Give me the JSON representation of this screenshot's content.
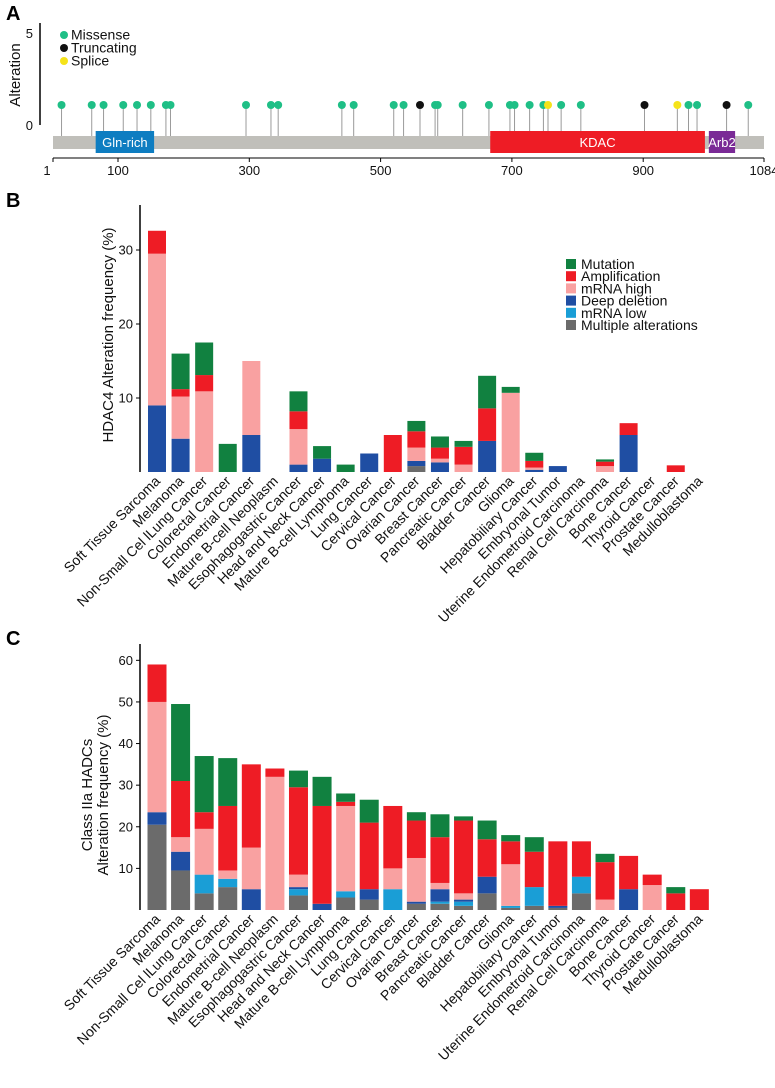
{
  "panel_a": {
    "letter": "A",
    "ylabel": "Alteration",
    "y_ticks": [
      "0",
      "5"
    ],
    "x_ticks": [
      1,
      100,
      300,
      500,
      700,
      900,
      1084
    ],
    "protein_length": 1084,
    "legend": [
      {
        "label": "Missense",
        "color": "#1fbf86"
      },
      {
        "label": "Truncating",
        "color": "#111111"
      },
      {
        "label": "Splice",
        "color": "#f5e31a"
      }
    ],
    "domains": [
      {
        "name": "Gln-rich",
        "start": 66,
        "end": 155,
        "color": "#0e7dc1"
      },
      {
        "name": "KDAC",
        "start": 667,
        "end": 994,
        "color": "#ee1c25"
      },
      {
        "name": "Arb2",
        "start": 1000,
        "end": 1040,
        "color": "#7a2a96"
      }
    ],
    "mutations": [
      {
        "pos": 14,
        "type": "Missense"
      },
      {
        "pos": 60,
        "type": "Missense"
      },
      {
        "pos": 78,
        "type": "Missense"
      },
      {
        "pos": 108,
        "type": "Missense"
      },
      {
        "pos": 129,
        "type": "Missense"
      },
      {
        "pos": 150,
        "type": "Missense"
      },
      {
        "pos": 173,
        "type": "Missense"
      },
      {
        "pos": 180,
        "type": "Missense"
      },
      {
        "pos": 295,
        "type": "Missense"
      },
      {
        "pos": 333,
        "type": "Missense"
      },
      {
        "pos": 344,
        "type": "Missense"
      },
      {
        "pos": 441,
        "type": "Missense"
      },
      {
        "pos": 459,
        "type": "Missense"
      },
      {
        "pos": 520,
        "type": "Missense"
      },
      {
        "pos": 535,
        "type": "Missense"
      },
      {
        "pos": 560,
        "type": "Truncating"
      },
      {
        "pos": 583,
        "type": "Missense"
      },
      {
        "pos": 587,
        "type": "Missense"
      },
      {
        "pos": 625,
        "type": "Missense"
      },
      {
        "pos": 665,
        "type": "Missense"
      },
      {
        "pos": 697,
        "type": "Missense"
      },
      {
        "pos": 704,
        "type": "Missense"
      },
      {
        "pos": 727,
        "type": "Missense"
      },
      {
        "pos": 748,
        "type": "Missense"
      },
      {
        "pos": 755,
        "type": "Splice"
      },
      {
        "pos": 775,
        "type": "Missense"
      },
      {
        "pos": 805,
        "type": "Missense"
      },
      {
        "pos": 902,
        "type": "Truncating"
      },
      {
        "pos": 952,
        "type": "Splice"
      },
      {
        "pos": 969,
        "type": "Missense"
      },
      {
        "pos": 982,
        "type": "Missense"
      },
      {
        "pos": 1027,
        "type": "Truncating"
      },
      {
        "pos": 1060,
        "type": "Missense"
      }
    ]
  },
  "chart_data": [
    {
      "panel": "B",
      "type": "bar",
      "stacked": true,
      "ylabel": "HDAC4 Alteration frequency (%)",
      "ylim": [
        0,
        35
      ],
      "yticks": [
        10,
        20,
        30
      ],
      "legend_position": "top-right",
      "categories": [
        "Soft Tissue Sarcoma",
        "Melanoma",
        "Non-Small Cel lLung Cancer",
        "Colorectal Cancer",
        "Endometrial Cancer",
        "Mature B-cell Neoplasm",
        "Esophagogastric Cancer",
        "Head and Neck Cancer",
        "Mature B-cell Lymphoma",
        "Lung Cancer",
        "Cervical Cancer",
        "Ovarian Cancer",
        "Breast Cancer",
        "Pancreatic Cancer",
        "Bladder Cancer",
        "Glioma",
        "Hepatobiliary Cancer",
        "Embryonal Tumor",
        "Uterine Endometroid Carcinoma",
        "Renal Cell Carcinoma",
        "Bone Cancer",
        "Thyroid Cancer",
        "Prostate Cancer",
        "Medulloblastoma"
      ],
      "series": [
        {
          "name": "Multiple alterations",
          "color": "#6b6b6b",
          "values": [
            0,
            0,
            0,
            0,
            0,
            0,
            0,
            0,
            0,
            0,
            0,
            0.8,
            0,
            0,
            0,
            0,
            0,
            0,
            0,
            0,
            0,
            0,
            0,
            0
          ]
        },
        {
          "name": "mRNA low",
          "color": "#1a9ed6",
          "values": [
            0,
            0,
            0,
            0,
            0,
            0,
            0,
            0,
            0,
            0,
            0,
            0,
            0,
            0,
            0,
            0,
            0,
            0,
            0,
            0,
            0,
            0,
            0,
            0
          ]
        },
        {
          "name": "Deep deletion",
          "color": "#1f4ea3",
          "values": [
            9,
            4.5,
            0,
            0,
            5,
            0,
            1,
            1.8,
            0,
            2.5,
            0,
            0.7,
            1.3,
            0,
            4.2,
            0,
            0.3,
            0.8,
            0,
            0,
            5,
            0,
            0,
            0
          ]
        },
        {
          "name": "mRNA high",
          "color": "#f9a1a1",
          "values": [
            20.5,
            5.7,
            10.9,
            0,
            10,
            0,
            4.8,
            0,
            0,
            0,
            0,
            1.8,
            0.5,
            1,
            0,
            10.7,
            0.3,
            0,
            0,
            0.8,
            0,
            0,
            0,
            0
          ]
        },
        {
          "name": "Amplification",
          "color": "#ee1c25",
          "values": [
            3.1,
            1,
            2.2,
            0,
            0,
            0,
            2.4,
            0,
            0,
            0,
            5,
            2.2,
            1.5,
            2.4,
            4.4,
            0,
            0.9,
            0,
            0,
            0.6,
            1.6,
            0,
            0.9,
            0
          ]
        },
        {
          "name": "Mutation",
          "color": "#118140",
          "values": [
            0,
            4.8,
            4.4,
            3.8,
            0,
            0,
            2.7,
            1.7,
            1,
            0,
            0,
            1.4,
            1.5,
            0.8,
            4.4,
            0.8,
            1.1,
            0,
            0,
            0.3,
            0,
            0,
            0,
            0
          ]
        }
      ]
    },
    {
      "panel": "C",
      "type": "bar",
      "stacked": true,
      "ylabel_lines": [
        "Class IIa HADCs",
        "Alteration frequency (%)"
      ],
      "ylim": [
        0,
        62
      ],
      "yticks": [
        10,
        20,
        30,
        40,
        50,
        60
      ],
      "categories": [
        "Soft Tissue Sarcoma",
        "Melanoma",
        "Non-Small Cel lLung Cancer",
        "Colorectal Cancer",
        "Endometrial Cancer",
        "Mature B-cell Neoplasm",
        "Esophagogastric Cancer",
        "Head and Neck Cancer",
        "Mature B-cell Lymphoma",
        "Lung Cancer",
        "Cervical Cancer",
        "Ovarian Cancer",
        "Breast Cancer",
        "Pancreatic Cancer",
        "Bladder Cancer",
        "Glioma",
        "Hepatobiliary Cancer",
        "Embryonal Tumor",
        "Uterine Endometroid Carcinoma",
        "Renal Cell Carcinoma",
        "Bone Cancer",
        "Thyroid Cancer",
        "Prostate Cancer",
        "Medulloblastoma"
      ],
      "series": [
        {
          "name": "Multiple alterations",
          "color": "#6b6b6b",
          "values": [
            20.5,
            9.5,
            4,
            5.5,
            0,
            0,
            3.5,
            0,
            3,
            2.5,
            0,
            1.5,
            1.5,
            1,
            4,
            0.5,
            1,
            0.5,
            4,
            0,
            0,
            0,
            0,
            0
          ]
        },
        {
          "name": "mRNA low",
          "color": "#1a9ed6",
          "values": [
            0,
            0,
            4.5,
            2,
            0,
            0,
            1.5,
            0,
            1.5,
            0,
            5,
            0,
            0.5,
            1,
            0,
            0.5,
            4.5,
            0,
            4,
            0,
            0,
            0,
            0,
            0
          ]
        },
        {
          "name": "Deep deletion",
          "color": "#1f4ea3",
          "values": [
            3,
            4.5,
            0,
            0,
            5,
            0,
            0.5,
            1.5,
            0,
            2.5,
            0,
            0.5,
            3,
            0.5,
            4,
            0,
            0,
            0.5,
            0,
            0,
            5,
            0,
            0,
            0
          ]
        },
        {
          "name": "mRNA high",
          "color": "#f9a1a1",
          "values": [
            26.5,
            3.5,
            11,
            2,
            10,
            32,
            3,
            0,
            20.5,
            0,
            5,
            10.5,
            1.5,
            1.5,
            0,
            10,
            0,
            0,
            0,
            2.5,
            0,
            6,
            0,
            0
          ]
        },
        {
          "name": "Amplification",
          "color": "#ee1c25",
          "values": [
            9,
            13.5,
            4,
            15.5,
            20,
            2,
            21,
            23.5,
            1,
            16,
            15,
            9,
            11,
            17.5,
            9,
            5.5,
            8.5,
            15.5,
            8.5,
            9,
            8,
            2.5,
            4,
            5
          ]
        },
        {
          "name": "Mutation",
          "color": "#118140",
          "values": [
            0,
            18.5,
            13.5,
            11.5,
            0,
            0,
            4,
            7,
            2,
            5.5,
            0,
            2,
            5.5,
            1,
            4.5,
            1.5,
            3.5,
            0,
            0,
            2,
            0,
            0,
            1.5,
            0
          ]
        }
      ]
    }
  ],
  "legend_order": [
    "Mutation",
    "Amplification",
    "mRNA high",
    "Deep deletion",
    "mRNA low",
    "Multiple alterations"
  ]
}
